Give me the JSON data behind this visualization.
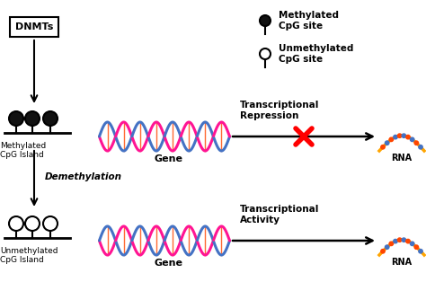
{
  "bg_color": "#ffffff",
  "legend_methylated_label": "Methylated\nCpG site",
  "legend_unmethylated_label": "Unmethylated\nCpG site",
  "dnmts_label": "DNMTs",
  "methylated_island_label": "Methylated\nCpG Island",
  "unmethylated_island_label": "Unmethylated\nCpG Island",
  "gene_label": "Gene",
  "transcriptional_repression_label": "Transcriptional\nRepression",
  "transcriptional_activity_label": "Transcriptional\nActivity",
  "rna_label": "RNA",
  "demethylation_label": "Demethylation",
  "dna_blue": "#4472C4",
  "dna_pink": "#FF1493",
  "dna_stripe": "#FF4500",
  "rna_orange": "#FFA500",
  "rna_dot_orange": "#FF4500",
  "rna_dot_blue": "#4472C4",
  "cross_color": "#FF0000",
  "methylated_ball_color": "#111111",
  "arrow_color": "#000000"
}
